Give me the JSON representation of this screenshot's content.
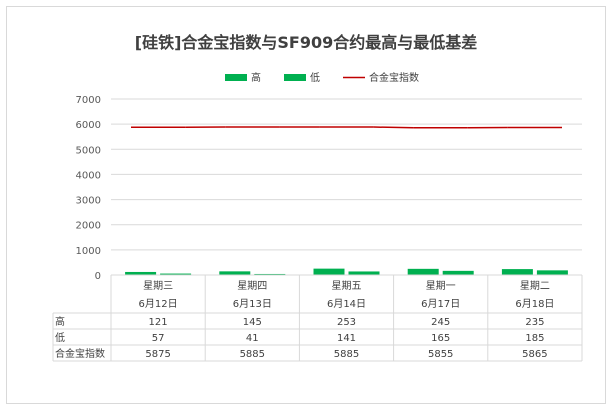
{
  "chart_data": {
    "type": "bar",
    "title": "[硅铁]合金宝指数与SF909合约最高与最低基差",
    "categories": [
      {
        "weekday": "星期三",
        "date": "6月12日"
      },
      {
        "weekday": "星期四",
        "date": "6月13日"
      },
      {
        "weekday": "星期五",
        "date": "6月14日"
      },
      {
        "weekday": "星期一",
        "date": "6月17日"
      },
      {
        "weekday": "星期二",
        "date": "6月18日"
      }
    ],
    "series": [
      {
        "name": "高",
        "kind": "bar",
        "color": "#00b050",
        "values": [
          121,
          145,
          253,
          245,
          235
        ]
      },
      {
        "name": "低",
        "kind": "bar",
        "color": "#00b050",
        "values": [
          57,
          41,
          141,
          165,
          185
        ]
      },
      {
        "name": "合金宝指数",
        "kind": "line",
        "color": "#c00000",
        "values": [
          5875,
          5885,
          5885,
          5855,
          5865
        ]
      }
    ],
    "yticks": [
      "0",
      "1000",
      "2000",
      "3000",
      "4000",
      "5000",
      "6000",
      "7000"
    ],
    "ylim": [
      0,
      7000
    ],
    "grid": true,
    "legend": "top",
    "data_table": true
  }
}
